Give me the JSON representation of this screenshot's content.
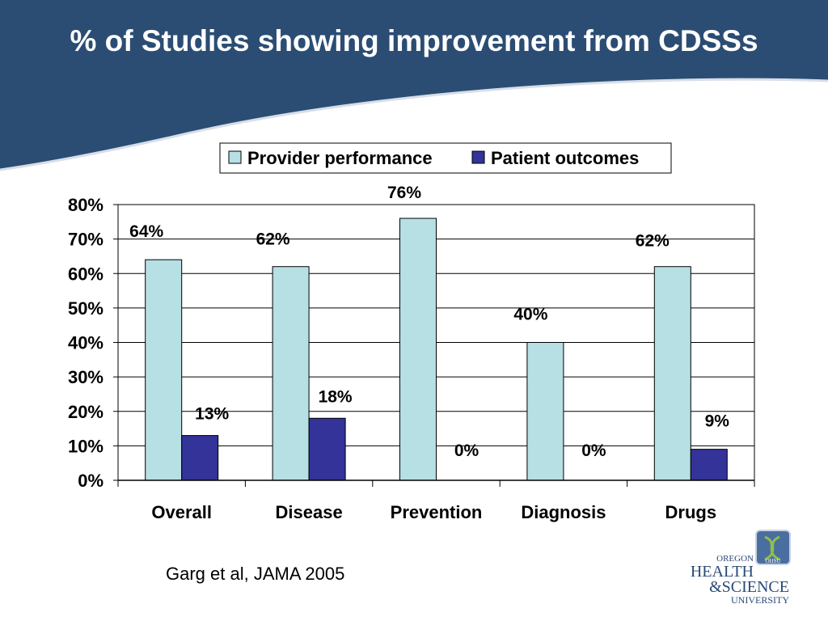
{
  "slide": {
    "title": "% of Studies showing improvement from CDSSs",
    "source_note": "Garg et al, JAMA 2005",
    "header_color": "#2b4d73"
  },
  "logo": {
    "line1": "OREGON",
    "line2": "HEALTH",
    "line3": "&SCIENCE",
    "line4": "UNIVERSITY",
    "badge": "OHSU"
  },
  "chart_data": {
    "type": "bar",
    "title": "",
    "xlabel": "",
    "ylabel": "",
    "categories": [
      "Overall",
      "Disease",
      "Prevention",
      "Diagnosis",
      "Drugs"
    ],
    "series": [
      {
        "name": "Provider performance",
        "values": [
          64,
          62,
          76,
          40,
          62
        ],
        "color": "#b7e0e4",
        "labels": [
          "64%",
          "62%",
          "76%",
          "40%",
          "62%"
        ]
      },
      {
        "name": "Patient outcomes",
        "values": [
          13,
          18,
          0,
          0,
          9
        ],
        "color": "#333399",
        "labels": [
          "13%",
          "18%",
          "0%",
          "0%",
          "9%"
        ]
      }
    ],
    "ylim": [
      0,
      80
    ],
    "yticks": [
      "0%",
      "10%",
      "20%",
      "30%",
      "40%",
      "50%",
      "60%",
      "70%",
      "80%"
    ],
    "grid": true,
    "legend_position": "top"
  }
}
